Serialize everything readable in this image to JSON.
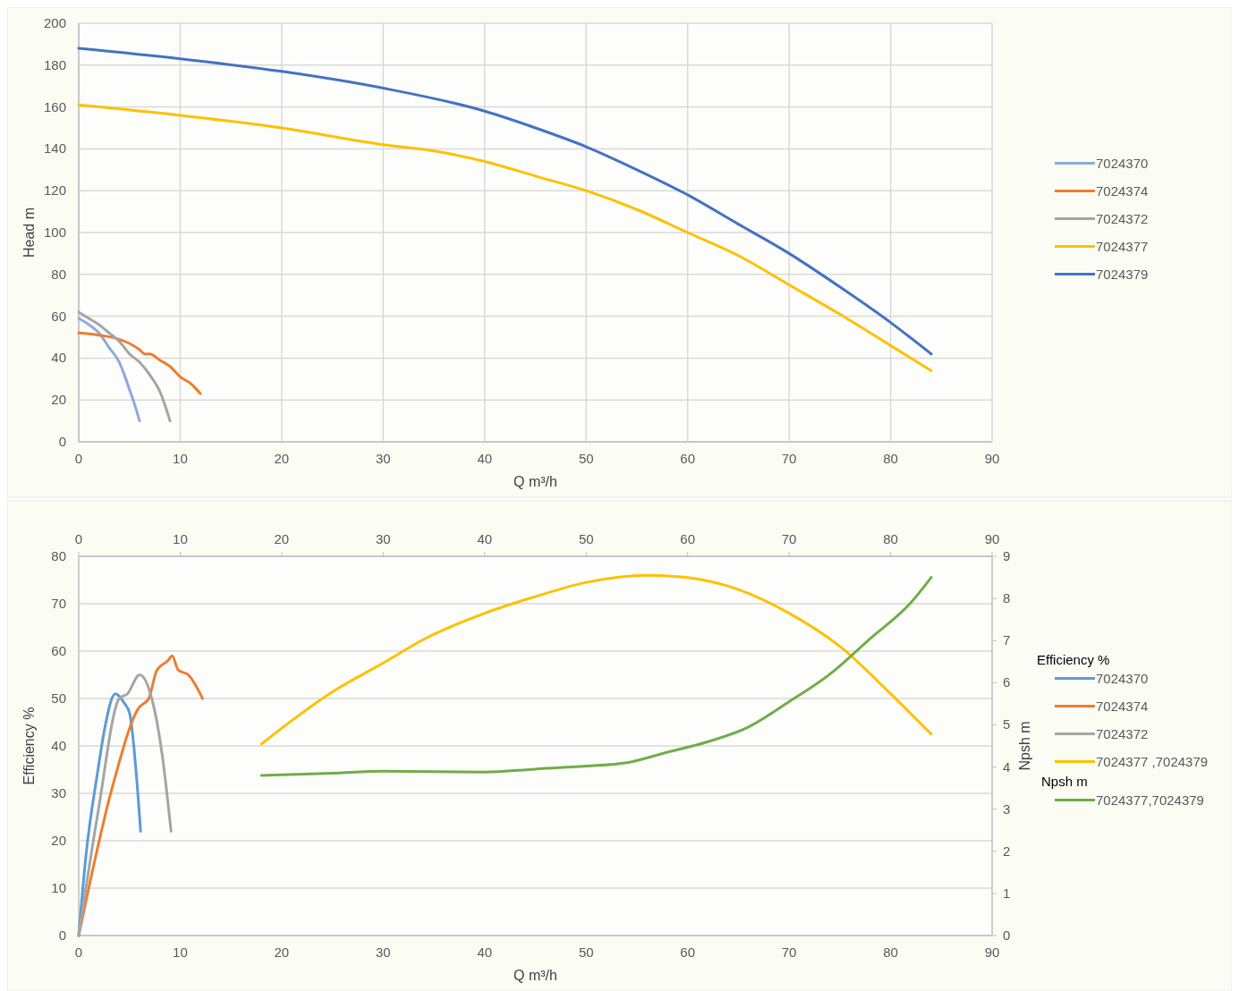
{
  "chart_data": [
    {
      "type": "line",
      "xlabel": "Q m³/h",
      "ylabel": "Head m",
      "xlim": [
        0,
        90
      ],
      "xticks": [
        0,
        10,
        20,
        30,
        40,
        50,
        60,
        70,
        80,
        90
      ],
      "ylim": [
        0,
        200
      ],
      "yticks": [
        0,
        20,
        40,
        60,
        80,
        100,
        120,
        140,
        160,
        180,
        200
      ],
      "grid": true,
      "legend": "right",
      "marker": "none",
      "line_style": "solid",
      "series": [
        {
          "name": "7024370",
          "color": "#8eaadb",
          "x": [
            0,
            1,
            2,
            3,
            4,
            4.5,
            5,
            5.5,
            6
          ],
          "values": [
            59,
            56,
            52,
            45,
            38,
            32,
            25,
            18,
            10
          ]
        },
        {
          "name": "7024374",
          "color": "#ed7d31",
          "x": [
            0,
            2,
            4,
            5,
            6,
            6.5,
            7,
            8,
            9,
            10,
            11,
            12
          ],
          "values": [
            52,
            51,
            49,
            47,
            44,
            42,
            42,
            39,
            36,
            31,
            28,
            23
          ]
        },
        {
          "name": "7024372",
          "color": "#a5a5a5",
          "x": [
            0,
            1,
            2,
            3,
            4,
            5,
            6,
            7,
            8,
            9
          ],
          "values": [
            62,
            59,
            56,
            52,
            48,
            42,
            38,
            32,
            24,
            10
          ]
        },
        {
          "name": "7024377",
          "color": "#ffc000",
          "x": [
            0,
            10,
            20,
            30,
            35,
            40,
            45,
            50,
            55,
            60,
            65,
            70,
            75,
            80,
            84
          ],
          "values": [
            161,
            156,
            150,
            142,
            139,
            134,
            127,
            120,
            111,
            100,
            89,
            75,
            61,
            46,
            34
          ]
        },
        {
          "name": "7024379",
          "color": "#4472c4",
          "x": [
            0,
            10,
            20,
            30,
            40,
            45,
            50,
            55,
            60,
            65,
            70,
            75,
            80,
            84
          ],
          "values": [
            188,
            183,
            177,
            169,
            158,
            150,
            141,
            130,
            118,
            104,
            90,
            74,
            57,
            42
          ]
        }
      ]
    },
    {
      "type": "line",
      "xlabel": "Q m³/h",
      "ylabel": "Efficiency %",
      "y2label": "Npsh m",
      "xlim": [
        0,
        90
      ],
      "xticks": [
        0,
        10,
        20,
        30,
        40,
        50,
        60,
        70,
        80,
        90
      ],
      "x2lim": [
        0,
        90
      ],
      "x2ticks": [
        0,
        10,
        20,
        30,
        40,
        50,
        60,
        70,
        80,
        90
      ],
      "ylim": [
        0,
        80
      ],
      "yticks": [
        0,
        10,
        20,
        30,
        40,
        50,
        60,
        70,
        80
      ],
      "y2lim": [
        0,
        9
      ],
      "y2ticks": [
        0,
        1,
        2,
        3,
        4,
        5,
        6,
        7,
        8,
        9
      ],
      "grid": "y",
      "legend": "right",
      "legend_title": "Efficiency %",
      "annotations": [
        "Npsh m"
      ],
      "marker": "none",
      "line_style": "solid",
      "series": [
        {
          "name": "7024370",
          "color": "#5b9bd5",
          "x": [
            0,
            0.72,
            1.9,
            2.5,
            3.6,
            4.5,
            5,
            6.1
          ],
          "values": [
            0,
            17,
            35,
            43,
            51,
            49,
            47,
            22
          ]
        },
        {
          "name": "7024374",
          "color": "#ed7d31",
          "x": [
            0,
            3.4,
            5.9,
            6.9,
            7.7,
            8.8,
            9.2,
            9.8,
            10.8,
            12.2
          ],
          "values": [
            0,
            32,
            48,
            50,
            56,
            58,
            59,
            56,
            55,
            50
          ]
        },
        {
          "name": "7024372",
          "color": "#a5a5a5",
          "x": [
            0,
            1.9,
            4,
            4.8,
            6,
            7.2,
            8.2,
            9.1
          ],
          "values": [
            0,
            26,
            50,
            51,
            55,
            50,
            38.5,
            22
          ]
        },
        {
          "name": "7024377 ,7024379",
          "color": "#ffc000",
          "x": [
            18,
            25,
            30,
            34,
            40,
            45,
            50,
            56,
            60,
            65,
            70,
            75,
            80,
            84
          ],
          "values": [
            40.4,
            51.4,
            57.5,
            62.5,
            68,
            71.5,
            74.5,
            76,
            75.5,
            73,
            68,
            61,
            51,
            42.5
          ]
        },
        {
          "name": "7024377,7024379",
          "color": "#70ad47",
          "axis": "y2",
          "x": [
            18,
            25,
            30,
            40,
            45,
            50,
            54,
            58,
            62,
            66,
            70,
            74,
            78,
            82,
            84
          ],
          "values": [
            3.8,
            3.85,
            3.9,
            3.88,
            3.95,
            4.02,
            4.1,
            4.35,
            4.6,
            4.95,
            5.55,
            6.2,
            7.05,
            7.9,
            8.5
          ]
        }
      ]
    }
  ]
}
